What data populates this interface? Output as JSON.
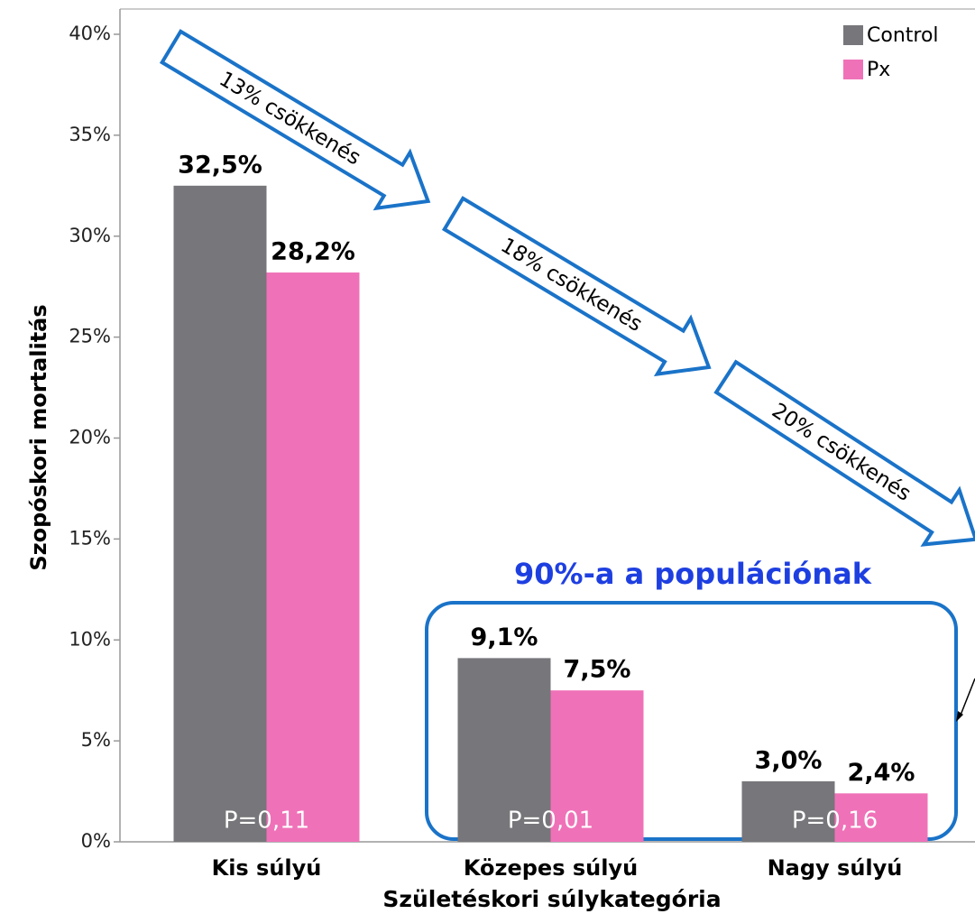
{
  "chart_data": {
    "type": "bar",
    "y_label": "Szopóskori mortalitás",
    "x_label": "Születéskori súlykategória",
    "categories": [
      "Kis súlyú",
      "Közepes súlyú",
      "Nagy súlyú"
    ],
    "series": [
      {
        "name": "Control",
        "color": "#77767a",
        "values": [
          32.5,
          9.1,
          3.0
        ],
        "value_labels": [
          "32,5%",
          "9,1%",
          "3,0%"
        ]
      },
      {
        "name": "Px",
        "color": "#ef72b8",
        "values": [
          28.2,
          7.5,
          2.4
        ],
        "value_labels": [
          "28,2%",
          "7,5%",
          "2,4%"
        ]
      }
    ],
    "p_values": [
      "P=0,11",
      "P=0,01",
      "P=0,16"
    ],
    "arrows": [
      "13% csökkenés",
      "18% csökkenés",
      "20% csökkenés"
    ],
    "box_label": "90%-a a populációnak",
    "ylim": [
      0,
      40
    ],
    "yticks": [
      {
        "value": 0,
        "label": "0%"
      },
      {
        "value": 5,
        "label": "5%"
      },
      {
        "value": 10,
        "label": "10%"
      },
      {
        "value": 15,
        "label": "15%"
      },
      {
        "value": 20,
        "label": "20%"
      },
      {
        "value": 25,
        "label": "25%"
      },
      {
        "value": 30,
        "label": "30%"
      },
      {
        "value": 35,
        "label": "35%"
      },
      {
        "value": 40,
        "label": "40%"
      }
    ]
  }
}
